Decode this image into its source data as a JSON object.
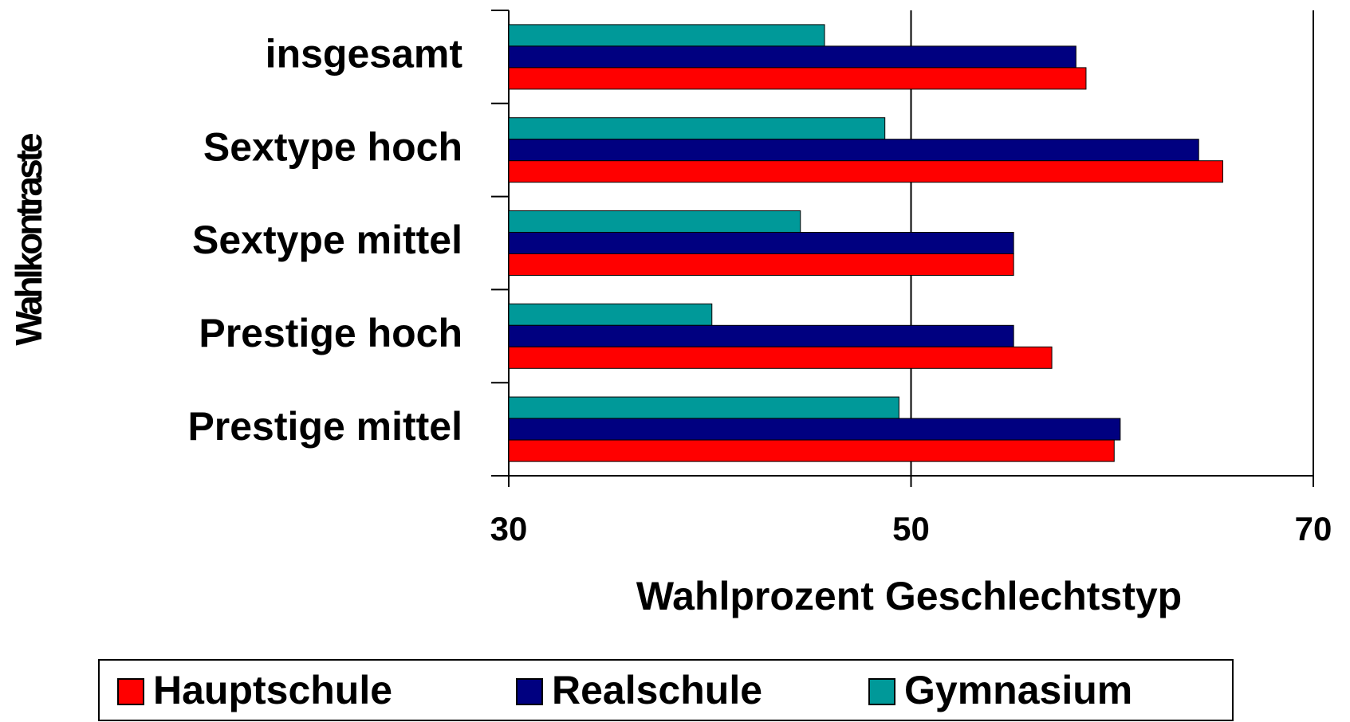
{
  "chart_data": {
    "type": "hbar",
    "x_label": "Wahlprozent Geschlechtstyp",
    "y_label": "Wahlkontraste",
    "categories": [
      "insgesamt",
      "Sextype hoch",
      "Sextype mittel",
      "Prestige hoch",
      "Prestige mittel"
    ],
    "series": [
      {
        "name": "Hauptschule",
        "color": "#ff0000",
        "values": [
          58.7,
          65.5,
          55.1,
          57.0,
          60.1
        ]
      },
      {
        "name": "Realschule",
        "color": "#000080",
        "values": [
          58.2,
          64.3,
          55.1,
          55.1,
          60.4
        ]
      },
      {
        "name": "Gymnasium",
        "color": "#009999",
        "values": [
          45.7,
          48.7,
          44.5,
          40.1,
          49.4
        ]
      }
    ],
    "xlim": [
      30,
      70
    ],
    "xticks": [
      30,
      50,
      70
    ],
    "grid": true,
    "legend": "bottom"
  }
}
